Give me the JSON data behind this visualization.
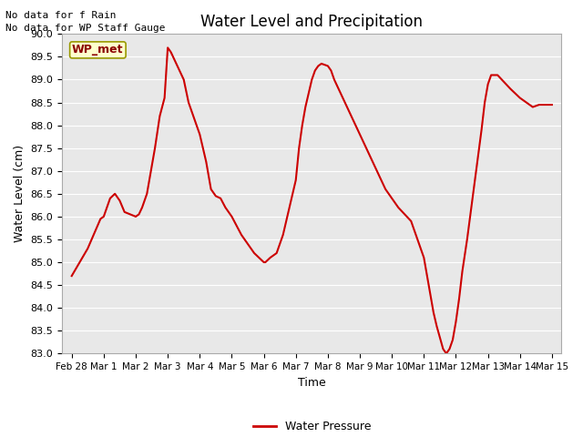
{
  "title": "Water Level and Precipitation",
  "xlabel": "Time",
  "ylabel": "Water Level (cm)",
  "annotation_line1": "No data for f Rain",
  "annotation_line2": "No data for WP Staff Gauge",
  "wp_met_label": "WP_met",
  "legend_label": "Water Pressure",
  "line_color": "#cc0000",
  "bg_color": "#e8e8e8",
  "ylim": [
    83.0,
    90.0
  ],
  "yticks": [
    83.0,
    83.5,
    84.0,
    84.5,
    85.0,
    85.5,
    86.0,
    86.5,
    87.0,
    87.5,
    88.0,
    88.5,
    89.0,
    89.5,
    90.0
  ],
  "xtick_labels": [
    "Feb 28",
    "Mar 1",
    "Mar 2",
    "Mar 3",
    "Mar 4",
    "Mar 5",
    "Mar 6",
    "Mar 7",
    "Mar 8",
    "Mar 9",
    "Mar 10",
    "Mar 11",
    "Mar 12",
    "Mar 13",
    "Mar 14",
    "Mar 15"
  ],
  "x_days": [
    0,
    0.5,
    0.9,
    1.0,
    1.2,
    1.35,
    1.5,
    1.65,
    2.0,
    2.1,
    2.2,
    2.35,
    2.6,
    2.75,
    2.9,
    3.0,
    3.1,
    3.3,
    3.5,
    3.65,
    3.8,
    4.0,
    4.2,
    4.35,
    4.5,
    4.65,
    4.8,
    5.0,
    5.15,
    5.3,
    5.5,
    5.7,
    6.0,
    6.05,
    6.2,
    6.4,
    6.5,
    6.6,
    6.8,
    7.0,
    7.1,
    7.2,
    7.3,
    7.4,
    7.5,
    7.6,
    7.7,
    7.8,
    8.0,
    8.1,
    8.2,
    8.4,
    8.6,
    8.8,
    9.0,
    9.2,
    9.4,
    9.6,
    9.8,
    10.0,
    10.2,
    10.4,
    10.6,
    10.8,
    11.0,
    11.1,
    11.2,
    11.3,
    11.4,
    11.5,
    11.6,
    11.65,
    11.7,
    11.75,
    11.8,
    11.9,
    12.0,
    12.1,
    12.2,
    12.35,
    12.5,
    12.65,
    12.8,
    12.9,
    13.0,
    13.1,
    13.2,
    13.3,
    13.5,
    13.7,
    14.0,
    14.2,
    14.4,
    14.6,
    15.0
  ],
  "y_vals": [
    84.7,
    85.3,
    85.95,
    86.0,
    86.4,
    86.5,
    86.35,
    86.1,
    86.0,
    86.05,
    86.2,
    86.5,
    87.5,
    88.2,
    88.6,
    89.7,
    89.6,
    89.3,
    89.0,
    88.5,
    88.2,
    87.8,
    87.2,
    86.6,
    86.45,
    86.4,
    86.2,
    86.0,
    85.8,
    85.6,
    85.4,
    85.2,
    85.0,
    85.0,
    85.1,
    85.2,
    85.4,
    85.6,
    86.2,
    86.8,
    87.5,
    88.0,
    88.4,
    88.7,
    89.0,
    89.2,
    89.3,
    89.35,
    89.3,
    89.2,
    89.0,
    88.7,
    88.4,
    88.1,
    87.8,
    87.5,
    87.2,
    86.9,
    86.6,
    86.4,
    86.2,
    86.05,
    85.9,
    85.5,
    85.1,
    84.7,
    84.3,
    83.9,
    83.6,
    83.35,
    83.1,
    83.05,
    83.0,
    83.05,
    83.1,
    83.3,
    83.7,
    84.2,
    84.8,
    85.5,
    86.3,
    87.1,
    87.9,
    88.5,
    88.9,
    89.1,
    89.1,
    89.1,
    88.95,
    88.8,
    88.6,
    88.5,
    88.4,
    88.45,
    88.45
  ]
}
